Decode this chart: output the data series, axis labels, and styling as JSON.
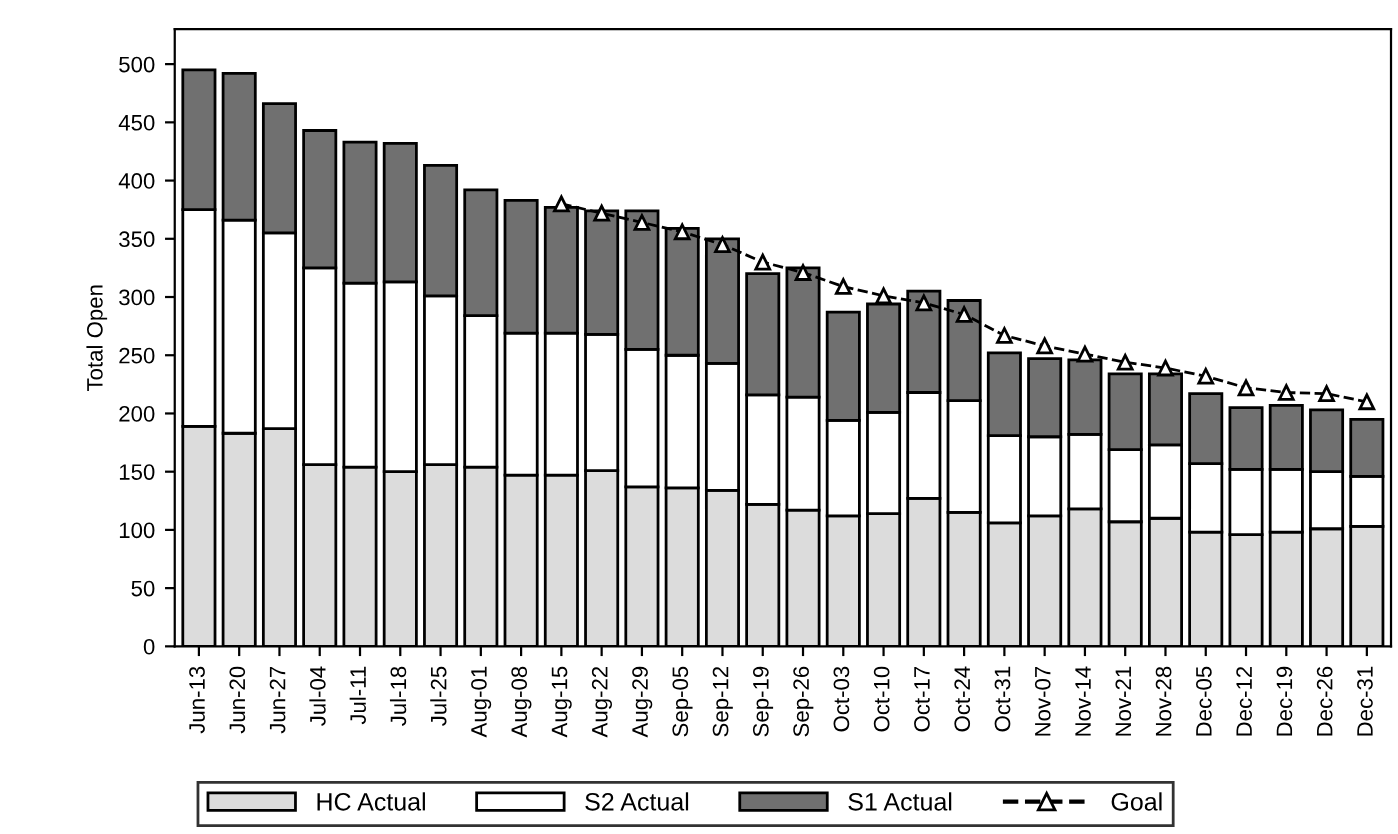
{
  "chart_data": {
    "type": "bar",
    "stacked": true,
    "ylabel": "Total Open",
    "ylim": [
      0,
      530
    ],
    "yticks": [
      0,
      50,
      100,
      150,
      200,
      250,
      300,
      350,
      400,
      450,
      500
    ],
    "grid": false,
    "legend": "bottom",
    "categories": [
      "Jun-13",
      "Jun-20",
      "Jun-27",
      "Jul-04",
      "Jul-11",
      "Jul-18",
      "Jul-25",
      "Aug-01",
      "Aug-08",
      "Aug-15",
      "Aug-22",
      "Aug-29",
      "Sep-05",
      "Sep-12",
      "Sep-19",
      "Sep-26",
      "Oct-03",
      "Oct-10",
      "Oct-17",
      "Oct-24",
      "Oct-31",
      "Nov-07",
      "Nov-14",
      "Nov-21",
      "Nov-28",
      "Dec-05",
      "Dec-12",
      "Dec-19",
      "Dec-26",
      "Dec-31"
    ],
    "series": [
      {
        "name": "HC Actual",
        "color": "#dcdcdc",
        "values": [
          189,
          183,
          187,
          156,
          154,
          150,
          156,
          154,
          147,
          147,
          151,
          137,
          136,
          134,
          122,
          117,
          112,
          114,
          127,
          115,
          106,
          112,
          118,
          107,
          110,
          98,
          96,
          98,
          101,
          103
        ]
      },
      {
        "name": "S2 Actual",
        "color": "#ffffff",
        "values": [
          186,
          183,
          168,
          169,
          158,
          163,
          145,
          130,
          122,
          122,
          117,
          118,
          114,
          109,
          94,
          97,
          82,
          87,
          91,
          96,
          75,
          68,
          64,
          62,
          63,
          59,
          56,
          54,
          49,
          43
        ]
      },
      {
        "name": "S1 Actual",
        "color": "#707070",
        "values": [
          120,
          126,
          111,
          118,
          121,
          119,
          112,
          108,
          114,
          108,
          106,
          119,
          109,
          107,
          104,
          111,
          93,
          93,
          87,
          86,
          71,
          67,
          64,
          65,
          61,
          60,
          53,
          55,
          53,
          49
        ]
      },
      {
        "name": "Goal",
        "type": "line",
        "color": "#000000",
        "line_style": "dashed",
        "marker": "triangle",
        "values": [
          null,
          null,
          null,
          null,
          null,
          null,
          null,
          null,
          null,
          380,
          372,
          364,
          356,
          345,
          330,
          321,
          309,
          301,
          295,
          285,
          267,
          258,
          251,
          244,
          239,
          232,
          222,
          218,
          217,
          210
        ]
      }
    ]
  }
}
